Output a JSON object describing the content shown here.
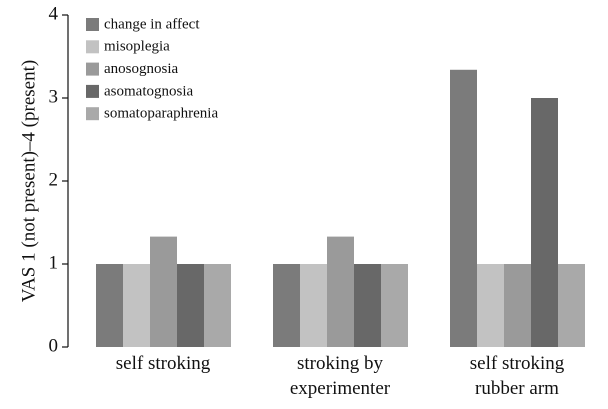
{
  "chart_data": {
    "type": "bar",
    "y_label": "VAS 1 (not present)–4 (present)",
    "categories": [
      "self stroking",
      "stroking by\nexperimenter",
      "self stroking\nrubber arm"
    ],
    "series": [
      {
        "name": "change in affect",
        "color": "#7b7b7b",
        "values": [
          1,
          1,
          3.34
        ]
      },
      {
        "name": "misoplegia",
        "color": "#c2c2c2",
        "values": [
          1,
          1,
          1
        ]
      },
      {
        "name": "anosognosia",
        "color": "#9a9a9a",
        "values": [
          1.33,
          1.33,
          1
        ]
      },
      {
        "name": "asomatognosia",
        "color": "#686868",
        "values": [
          1,
          1,
          3
        ]
      },
      {
        "name": "somatoparaphrenia",
        "color": "#a9a9a9",
        "values": [
          1,
          1,
          1
        ]
      }
    ],
    "ylim": [
      0,
      4
    ],
    "yticks": [
      0,
      1,
      2,
      3,
      4
    ],
    "legend": "upper left"
  }
}
